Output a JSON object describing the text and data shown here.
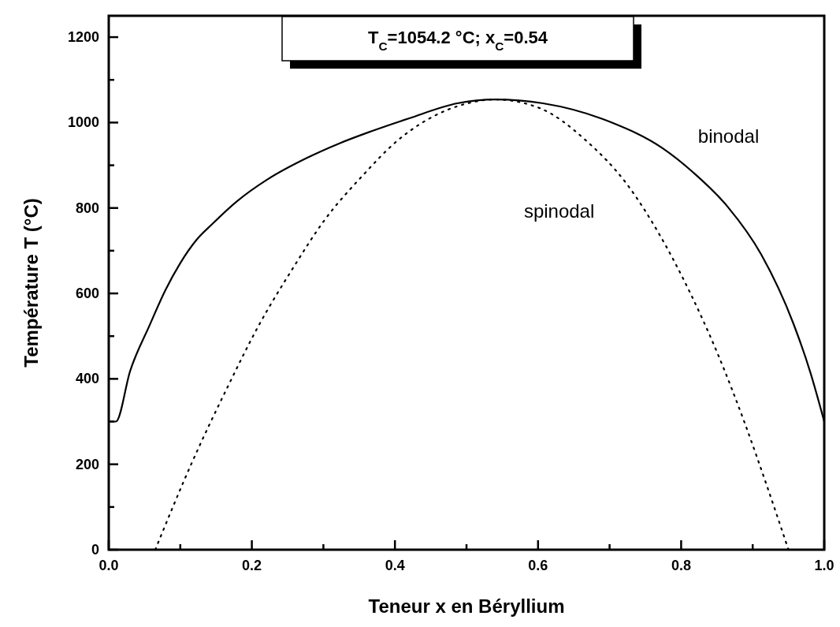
{
  "chart_data": {
    "type": "line",
    "xlabel": "Teneur x en Béryllium",
    "ylabel": "Température T (°C)",
    "annotations": [
      "T$_{C}$=1054.2 °C; x$_{C}$=0.54"
    ],
    "xlim": [
      0,
      1
    ],
    "ylim": [
      0,
      1250
    ],
    "xticks": [
      {
        "value": 0,
        "label": "0.0"
      },
      {
        "value": 0.1,
        "label": null
      },
      {
        "value": 0.2,
        "label": "0.2"
      },
      {
        "value": 0.3,
        "label": null
      },
      {
        "value": 0.4,
        "label": "0.4"
      },
      {
        "value": 0.5,
        "label": null
      },
      {
        "value": 0.6,
        "label": "0.6"
      },
      {
        "value": 0.7,
        "label": null
      },
      {
        "value": 0.8,
        "label": "0.8"
      },
      {
        "value": 0.9,
        "label": null
      },
      {
        "value": 1,
        "label": "1.0"
      }
    ],
    "yticks": [
      0,
      {
        "value": 100,
        "label": null
      },
      200,
      {
        "value": 300,
        "label": null
      },
      400,
      {
        "value": 500,
        "label": null
      },
      600,
      {
        "value": 700,
        "label": null
      },
      800,
      {
        "value": 900,
        "label": null
      },
      1000,
      {
        "value": 1100,
        "label": null
      },
      1200
    ],
    "grid": false,
    "marker": "none",
    "series": [
      {
        "name": "binodal",
        "color": "#000000",
        "line_style": "solid",
        "x": [
          0,
          0.01,
          0.03,
          0.057,
          0.079,
          0.1,
          0.123,
          0.145,
          0.178,
          0.222,
          0.278,
          0.322,
          0.366,
          0.42,
          0.487,
          0.54,
          0.607,
          0.7,
          0.774,
          0.817,
          0.865,
          0.912,
          0.957,
          0.981,
          1
        ],
        "values": [
          300,
          300,
          419,
          525,
          607,
          671,
          726,
          763,
          814,
          867,
          918,
          951,
          979,
          1010,
          1045,
          1054,
          1045,
          1002,
          940,
          883,
          803,
          691,
          529,
          413,
          300
        ]
      },
      {
        "name": "spinodal",
        "color": "#000000",
        "line_style": "dotted",
        "x": [
          0.065,
          0.116,
          0.167,
          0.209,
          0.257,
          0.3,
          0.356,
          0.403,
          0.452,
          0.497,
          0.54,
          0.602,
          0.667,
          0.725,
          0.77,
          0.813,
          0.852,
          0.889,
          0.921,
          0.95
        ],
        "values": [
          0,
          203,
          384,
          523,
          658,
          768,
          878,
          957,
          1013,
          1043,
          1054,
          1034,
          958,
          854,
          737,
          600,
          455,
          296,
          144,
          0
        ]
      }
    ]
  }
}
